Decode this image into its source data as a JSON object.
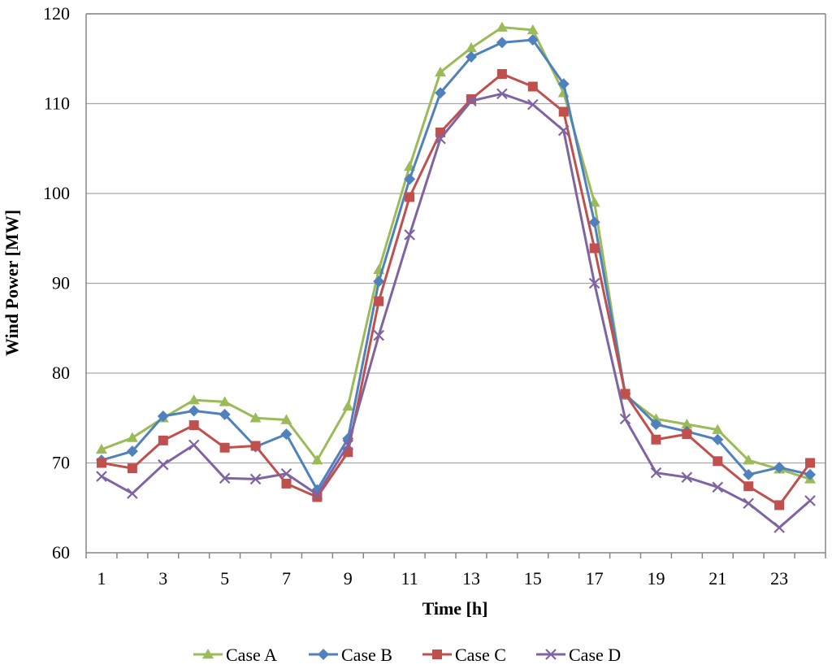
{
  "chart_data": {
    "type": "line",
    "title": "",
    "xlabel": "Time [h]",
    "ylabel": "Wind Power [MW]",
    "ylim": [
      60,
      120
    ],
    "yticks": [
      60,
      70,
      80,
      90,
      100,
      110,
      120
    ],
    "x": [
      1,
      2,
      3,
      4,
      5,
      6,
      7,
      8,
      9,
      10,
      11,
      12,
      13,
      14,
      15,
      16,
      17,
      18,
      19,
      20,
      21,
      22,
      23,
      24
    ],
    "xtick_labels": [
      "1",
      "3",
      "5",
      "7",
      "9",
      "11",
      "13",
      "15",
      "17",
      "19",
      "21",
      "23"
    ],
    "grid": true,
    "legend_position": "bottom",
    "series": [
      {
        "name": "Case A",
        "color": "#9bbb59",
        "marker": "triangle",
        "values": [
          71.5,
          72.8,
          75.0,
          77.0,
          76.8,
          75.0,
          74.8,
          70.3,
          76.3,
          91.5,
          103.0,
          113.5,
          116.2,
          118.5,
          118.2,
          111.2,
          99.0,
          77.5,
          74.9,
          74.3,
          73.7,
          70.3,
          69.3,
          68.2
        ]
      },
      {
        "name": "Case B",
        "color": "#4f81bd",
        "marker": "diamond",
        "values": [
          70.3,
          71.3,
          75.2,
          75.8,
          75.4,
          71.8,
          73.2,
          67.0,
          72.7,
          90.2,
          101.6,
          111.2,
          115.2,
          116.8,
          117.1,
          112.2,
          96.8,
          77.7,
          74.3,
          73.5,
          72.6,
          68.7,
          69.5,
          68.7
        ]
      },
      {
        "name": "Case C",
        "color": "#c0504d",
        "marker": "square",
        "values": [
          70.0,
          69.4,
          72.5,
          74.2,
          71.7,
          71.9,
          67.7,
          66.2,
          71.2,
          88.0,
          99.6,
          106.8,
          110.5,
          113.3,
          111.9,
          109.1,
          93.9,
          77.7,
          72.6,
          73.2,
          70.2,
          67.4,
          65.3,
          70.0
        ]
      },
      {
        "name": "Case D",
        "color": "#8064a2",
        "marker": "x",
        "values": [
          68.5,
          66.6,
          69.8,
          72.0,
          68.3,
          68.2,
          68.8,
          66.5,
          72.0,
          84.2,
          95.4,
          106.1,
          110.3,
          111.1,
          109.9,
          107.0,
          90.0,
          74.9,
          68.9,
          68.4,
          67.3,
          65.5,
          62.8,
          65.8
        ]
      }
    ]
  }
}
